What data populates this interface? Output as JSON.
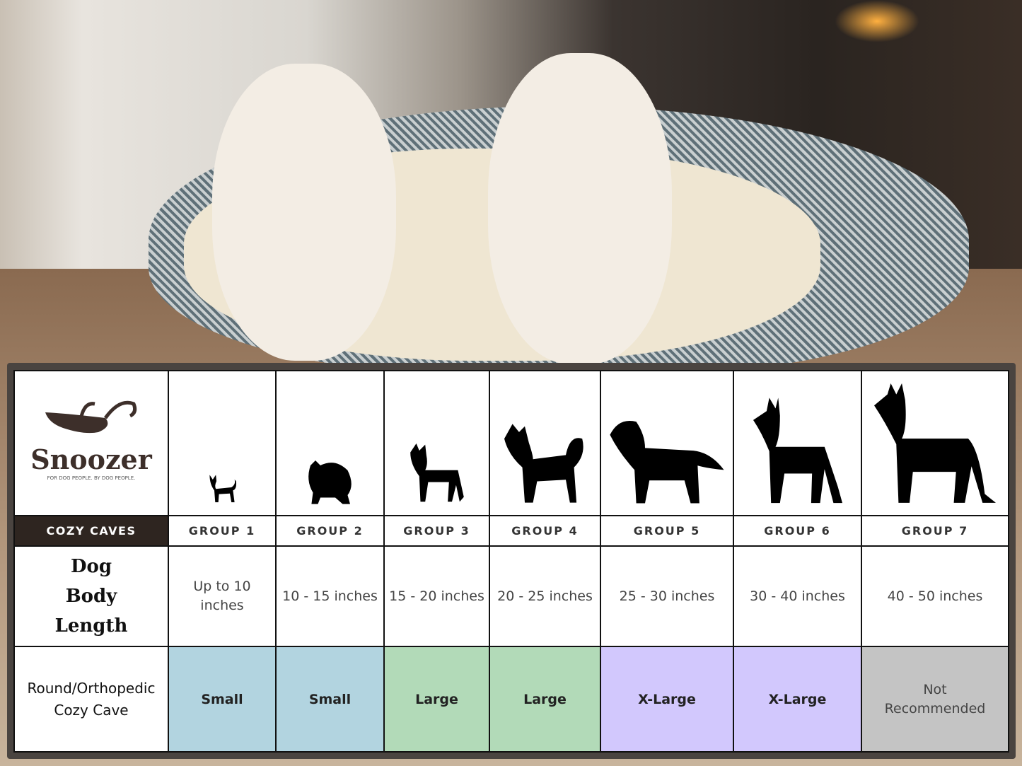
{
  "brand": {
    "name": "Snoozer",
    "tagline": "FOR DOG PEOPLE. BY DOG PEOPLE.",
    "product_line": "COZY CAVES"
  },
  "colors": {
    "small": "#b2d4e0",
    "large": "#b2dab8",
    "xlarge": "#d2c8fd",
    "not_recommended": "#c4c4c4",
    "header_dark": "#2e2520"
  },
  "groups": [
    {
      "label": "GROUP 1",
      "length": "Up to 10 inches",
      "size": "Small",
      "icon": "chihuahua-silhouette-icon"
    },
    {
      "label": "GROUP 2",
      "length": "10 - 15 inches",
      "size": "Small",
      "icon": "pomeranian-silhouette-icon"
    },
    {
      "label": "GROUP 3",
      "length": "15 - 20 inches",
      "size": "Large",
      "icon": "boston-terrier-silhouette-icon"
    },
    {
      "label": "GROUP 4",
      "length": "20 - 25 inches",
      "size": "Large",
      "icon": "shiba-silhouette-icon"
    },
    {
      "label": "GROUP 5",
      "length": "25 - 30 inches",
      "size": "X-Large",
      "icon": "golden-retriever-silhouette-icon"
    },
    {
      "label": "GROUP 6",
      "length": "30 - 40 inches",
      "size": "X-Large",
      "icon": "doberman-silhouette-icon"
    },
    {
      "label": "GROUP 7",
      "length": "40 - 50 inches",
      "size": "Not Recommended",
      "icon": "great-dane-silhouette-icon"
    }
  ],
  "rows": {
    "length_label": "Dog Body Length",
    "product_label": "Round/Orthopedic Cozy Cave"
  }
}
